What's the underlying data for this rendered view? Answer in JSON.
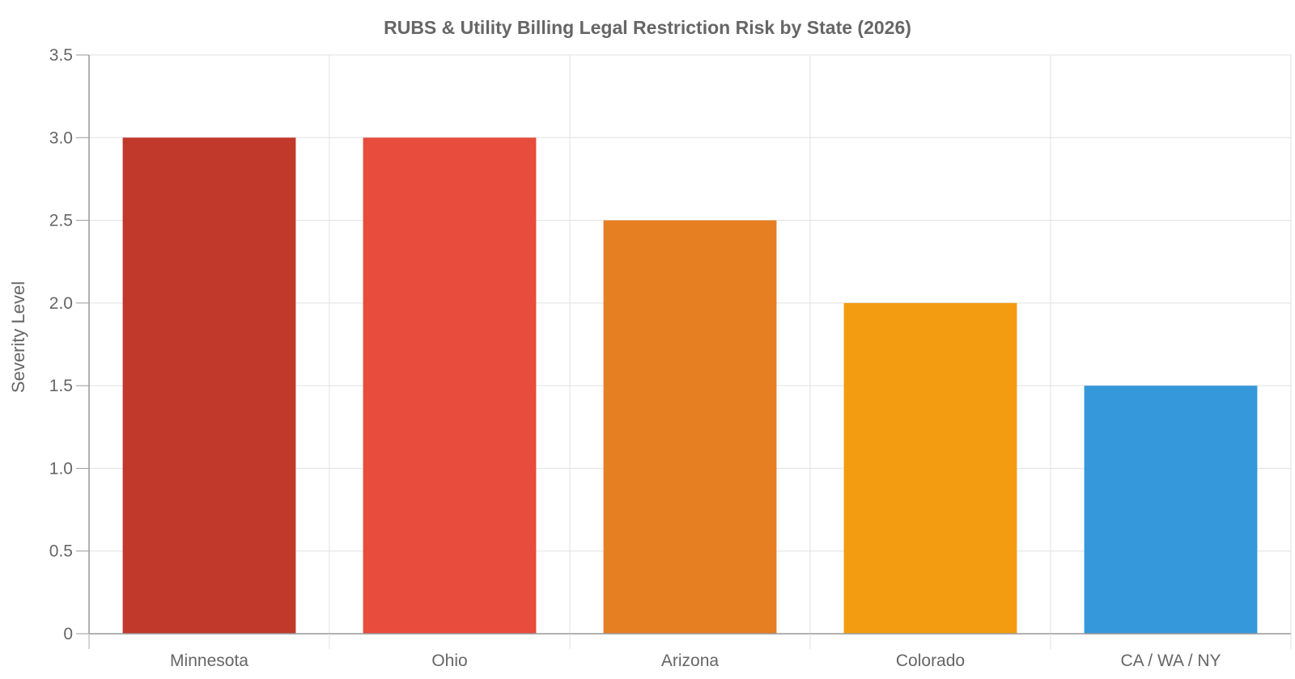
{
  "chart_data": {
    "type": "bar",
    "title": "RUBS & Utility Billing Legal Restriction Risk by State (2026)",
    "xlabel": "",
    "ylabel": "Severity Level",
    "categories": [
      "Minnesota",
      "Ohio",
      "Arizona",
      "Colorado",
      "CA / WA / NY"
    ],
    "values": [
      3.0,
      3.0,
      2.5,
      2.0,
      1.5
    ],
    "colors": [
      "#c0392b",
      "#e74c3c",
      "#e67e22",
      "#f39c12",
      "#3498db"
    ],
    "ylim": [
      0,
      3.5
    ],
    "yticks": [
      "0",
      "0.5",
      "1.0",
      "1.5",
      "2.0",
      "2.5",
      "3.0",
      "3.5"
    ],
    "ytick_values": [
      0,
      0.5,
      1.0,
      1.5,
      2.0,
      2.5,
      3.0,
      3.5
    ],
    "grid": true,
    "legend": "none"
  },
  "style": {
    "grid_color": "#e0e0e0",
    "axis_color": "#999999",
    "text_color": "#666666"
  }
}
